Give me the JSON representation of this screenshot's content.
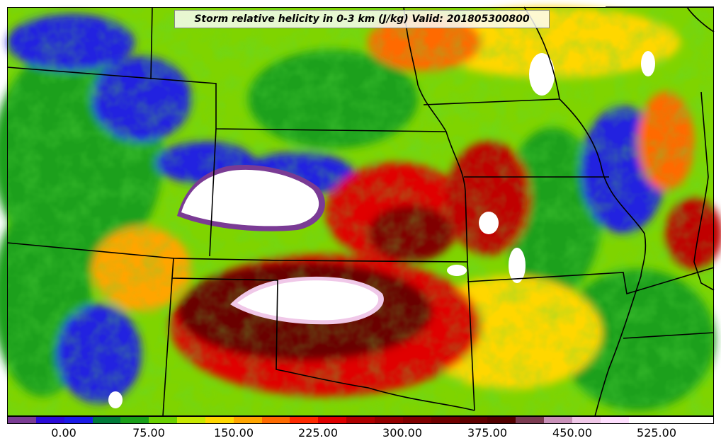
{
  "title": "Storm relative helicity in 0-3 km (J/kg) Valid: 201805300800",
  "colorbar": {
    "colors": [
      "#7a3b94",
      "#2a0ad8",
      "#1a1ae8",
      "#007a3a",
      "#1aa01a",
      "#6ad000",
      "#c8e800",
      "#ffd700",
      "#ffa500",
      "#ff6a00",
      "#ff2a00",
      "#e00000",
      "#b00000",
      "#940000",
      "#800000",
      "#700000",
      "#600000",
      "#520000",
      "#7a3a50",
      "#c890b8",
      "#f0c8e8",
      "#ffe0ff",
      "#ffffff",
      "#ffffff",
      "#ffffff"
    ],
    "tick_labels": [
      "0.00",
      "75.00",
      "150.00",
      "225.00",
      "300.00",
      "375.00",
      "450.00",
      "525.00"
    ]
  }
}
